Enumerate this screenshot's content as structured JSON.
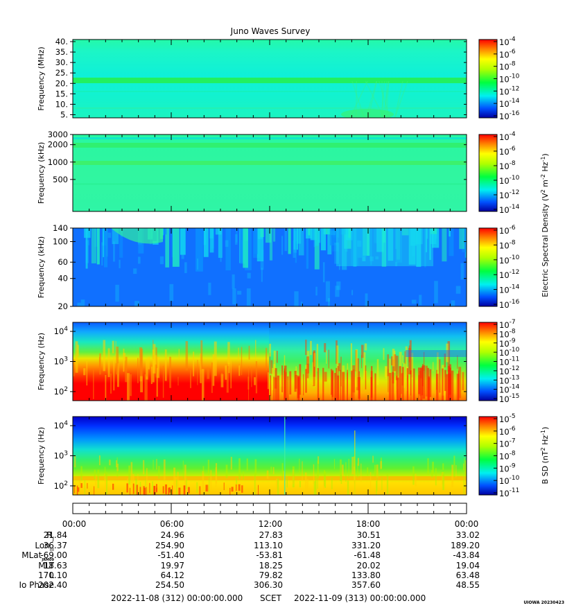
{
  "chart_data": {
    "type": "heatmap",
    "title": "Juno Waves Survey",
    "panels": [
      {
        "ylabel": "Frequency (MHz)",
        "yscale": "linear",
        "ylim": [
          3.5,
          41
        ],
        "yticks": [
          5,
          10,
          15,
          20,
          25,
          30,
          35,
          40
        ],
        "yticklabels": [
          "5.",
          "10.",
          "15.",
          "20.",
          "25.",
          "30.",
          "35.",
          "40."
        ],
        "colorbar": {
          "label": "",
          "ticks": [
            {
              "mant": "10",
              "exp": "-4"
            },
            {
              "mant": "10",
              "exp": "-6"
            },
            {
              "mant": "10",
              "exp": "-8"
            },
            {
              "mant": "10",
              "exp": "-10"
            },
            {
              "mant": "10",
              "exp": "-12"
            },
            {
              "mant": "10",
              "exp": "-14"
            },
            {
              "mant": "10",
              "exp": "-16"
            }
          ]
        }
      },
      {
        "ylabel": "Frequency (kHz)",
        "yscale": "log",
        "ylim": [
          140,
          3000
        ],
        "yticks": [
          500,
          1000,
          2000,
          3000
        ],
        "yticklabels": [
          "500",
          "1000",
          "2000",
          "3000"
        ],
        "colorbar": {
          "label": "",
          "ticks": [
            {
              "mant": "10",
              "exp": "-4"
            },
            {
              "mant": "10",
              "exp": "-6"
            },
            {
              "mant": "10",
              "exp": "-8"
            },
            {
              "mant": "10",
              "exp": "-10"
            },
            {
              "mant": "10",
              "exp": "-12"
            },
            {
              "mant": "10",
              "exp": "-14"
            }
          ]
        }
      },
      {
        "ylabel": "Frequency (kHz)",
        "yscale": "log",
        "ylim": [
          20,
          140
        ],
        "yticks": [
          20,
          40,
          60,
          100,
          140
        ],
        "yticklabels": [
          "20",
          "40",
          "60",
          "100",
          "140"
        ],
        "colorbar": {
          "label": "",
          "ticks": [
            {
              "mant": "10",
              "exp": "-6"
            },
            {
              "mant": "10",
              "exp": "-8"
            },
            {
              "mant": "10",
              "exp": "-10"
            },
            {
              "mant": "10",
              "exp": "-12"
            },
            {
              "mant": "10",
              "exp": "-14"
            },
            {
              "mant": "10",
              "exp": "-16"
            }
          ]
        }
      },
      {
        "ylabel": "Frequency (Hz)",
        "yscale": "log",
        "ylim": [
          50,
          20000
        ],
        "yticks": [
          100,
          1000,
          10000
        ],
        "yticklabels": [
          {
            "mant": "10",
            "exp": "2"
          },
          {
            "mant": "10",
            "exp": "3"
          },
          {
            "mant": "10",
            "exp": "4"
          }
        ],
        "colorbar": {
          "label": "",
          "ticks": [
            {
              "mant": "10",
              "exp": "-7"
            },
            {
              "mant": "10",
              "exp": "-8"
            },
            {
              "mant": "10",
              "exp": "-9"
            },
            {
              "mant": "10",
              "exp": "-10"
            },
            {
              "mant": "10",
              "exp": "-11"
            },
            {
              "mant": "10",
              "exp": "-12"
            },
            {
              "mant": "10",
              "exp": "-13"
            },
            {
              "mant": "10",
              "exp": "-14"
            },
            {
              "mant": "10",
              "exp": "-15"
            }
          ]
        }
      },
      {
        "ylabel": "Frequency (Hz)",
        "yscale": "log",
        "ylim": [
          50,
          20000
        ],
        "yticks": [
          100,
          1000,
          10000
        ],
        "yticklabels": [
          {
            "mant": "10",
            "exp": "2"
          },
          {
            "mant": "10",
            "exp": "3"
          },
          {
            "mant": "10",
            "exp": "4"
          }
        ],
        "colorbar": {
          "label": "",
          "ticks": [
            {
              "mant": "10",
              "exp": "-5"
            },
            {
              "mant": "10",
              "exp": "-6"
            },
            {
              "mant": "10",
              "exp": "-7"
            },
            {
              "mant": "10",
              "exp": "-8"
            },
            {
              "mant": "10",
              "exp": "-9"
            },
            {
              "mant": "10",
              "exp": "-10"
            },
            {
              "mant": "10",
              "exp": "-11"
            }
          ]
        }
      }
    ],
    "shared_colorbar_label": {
      "base": "Electric Spectral Density (V",
      "e1": "2",
      "mid": " m",
      "e2": "-2",
      "mid2": " Hz",
      "e3": "-1",
      "tail": ")"
    },
    "bsd_colorbar_label": {
      "base": "B SD (nT",
      "e1": "2",
      "mid": " Hz",
      "e2": "-1",
      "tail": ")"
    },
    "x": {
      "label": "SCET",
      "ticks": [
        "00:00",
        "06:00",
        "12:00",
        "18:00",
        "00:00"
      ],
      "start": "2022-11-08 (312) 00:00:00.000",
      "end": "2022-11-09 (313) 00:00:00.000"
    },
    "ephemeris": [
      {
        "label": "R",
        "sub": "J",
        "values": [
          "21.84",
          "24.96",
          "27.83",
          "30.51",
          "33.02"
        ]
      },
      {
        "label": "Lon",
        "sub": "III",
        "values": [
          "36.37",
          "254.90",
          "113.10",
          "331.20",
          "189.20"
        ]
      },
      {
        "label": "MLat",
        "sub": "JRM09",
        "values": [
          "-69.00",
          "-51.40",
          "-53.81",
          "-61.48",
          "-43.84"
        ]
      },
      {
        "label": "MLT",
        "sub": "",
        "values": [
          "18.63",
          "19.97",
          "18.25",
          "20.02",
          "19.04"
        ]
      },
      {
        "label": "L",
        "sub": "",
        "values": [
          "170.10",
          "64.12",
          "79.82",
          "133.80",
          "63.48"
        ]
      },
      {
        "label": "Io Phase",
        "sub": "",
        "values": [
          "202.40",
          "254.50",
          "306.30",
          "357.60",
          "48.55"
        ]
      }
    ],
    "stamp": "UIOWA 20230423"
  }
}
